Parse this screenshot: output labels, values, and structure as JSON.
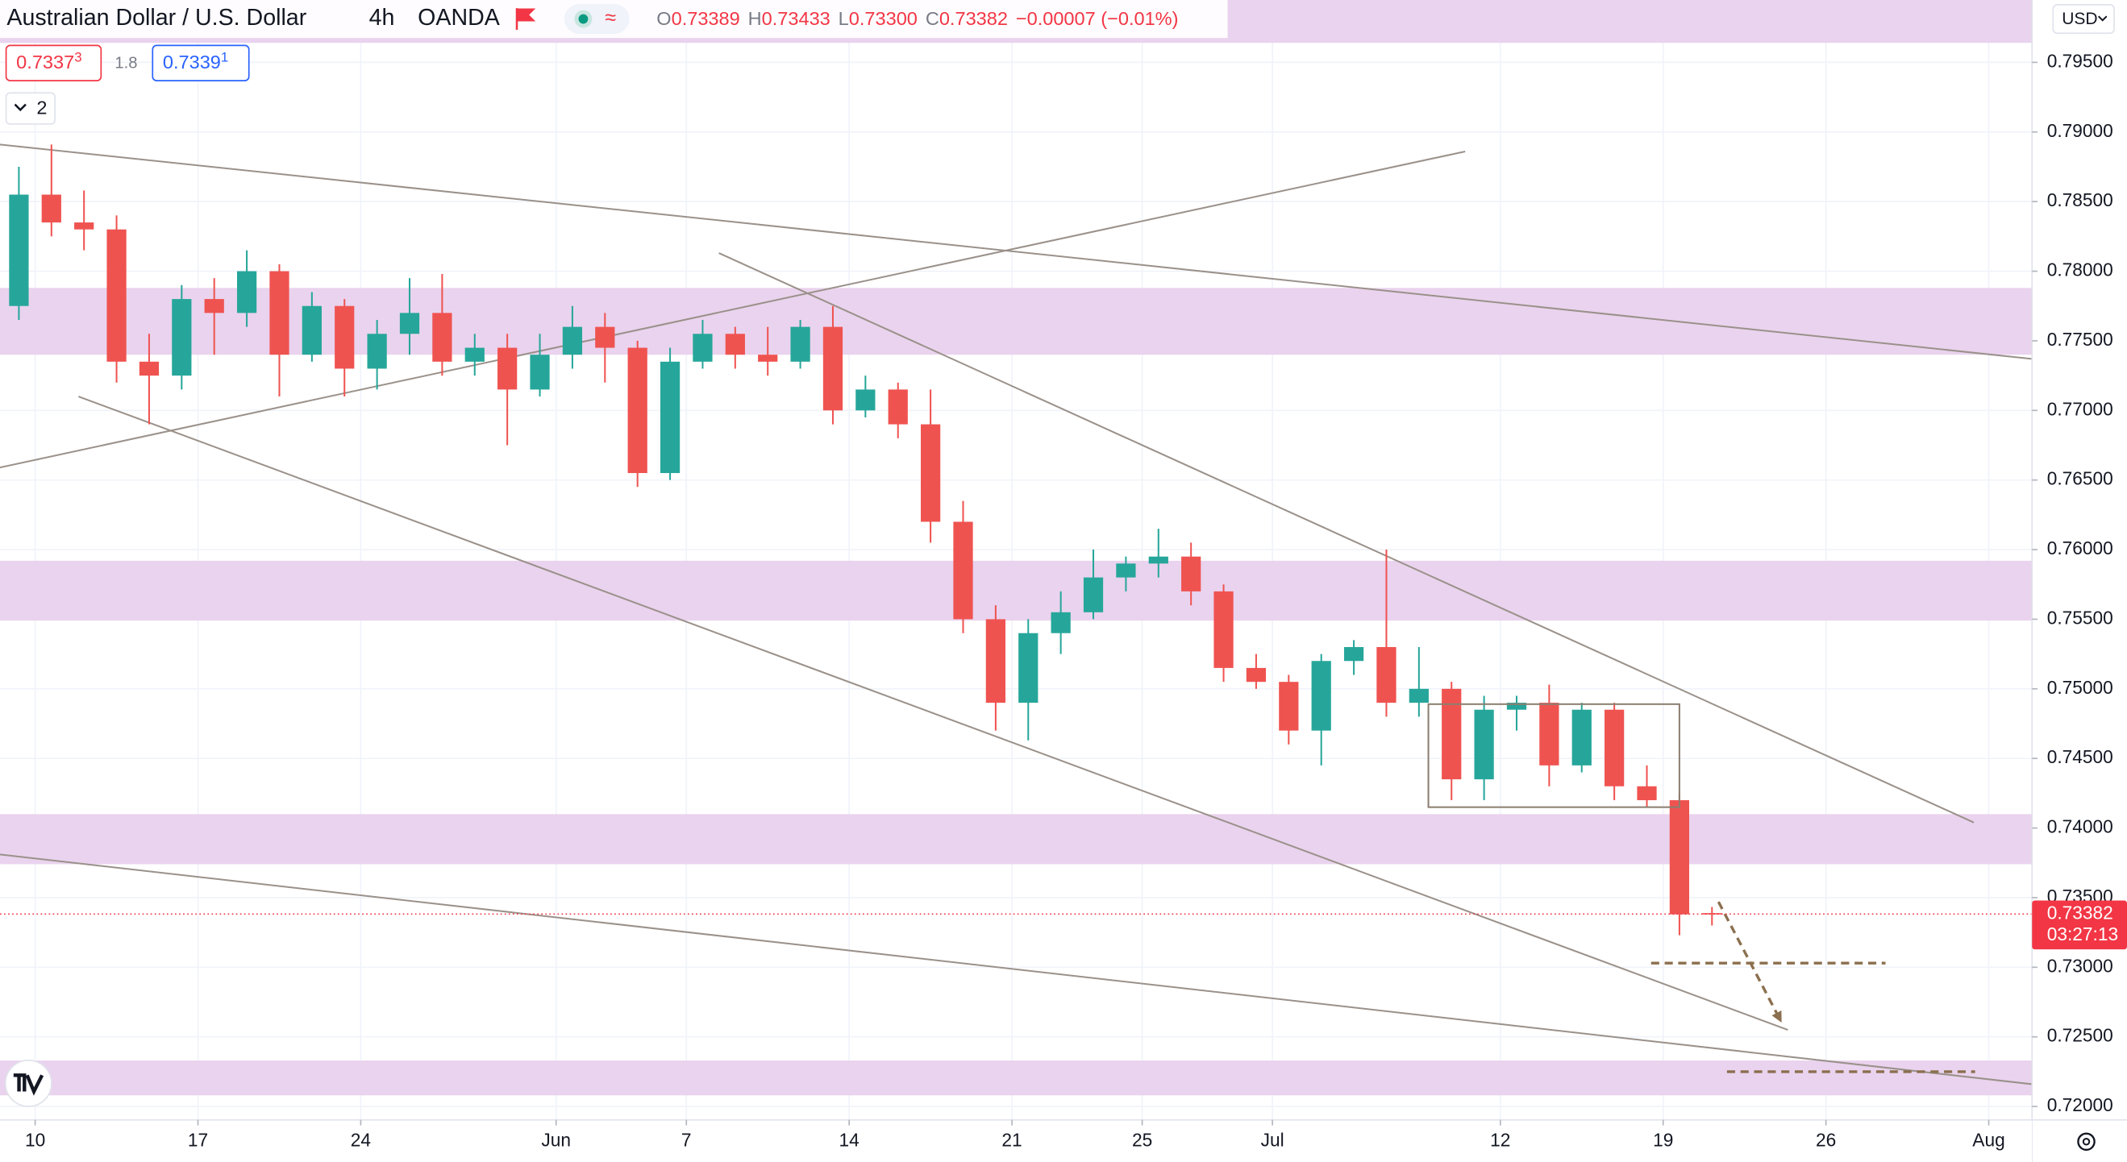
{
  "ui": {
    "symbol": "Australian Dollar / U.S. Dollar",
    "interval": "4h",
    "exchange": "OANDA",
    "ohlc": {
      "o_label": "O",
      "o": "0.73389",
      "h_label": "H",
      "h": "0.73433",
      "l_label": "L",
      "l": "0.73300",
      "c_label": "C",
      "c": "0.73382",
      "change": "−0.00007 (−0.01%)"
    },
    "sell": {
      "main": "0.7337",
      "pip": "3"
    },
    "spread": "1.8",
    "buy": {
      "main": "0.7339",
      "pip": "1"
    },
    "indicators": "2",
    "currency": "USD"
  },
  "chart_data": {
    "type": "candlestick",
    "up_color": "#26a69a",
    "down_color": "#ef5350",
    "x": [
      -0.5,
      0.5,
      1.5,
      2.5,
      3.5,
      4.5,
      5.5,
      6.5,
      7.5,
      8.5,
      9.5,
      10.5,
      11.5,
      12.5,
      13.5,
      14.5,
      15.5,
      16.5,
      17.5,
      18.5,
      19.5,
      20.5,
      21.5,
      22.5,
      23.5,
      24.5,
      25.5,
      26.5,
      27.5,
      28.5,
      29.5,
      30.5,
      31.5,
      32.5,
      33.5,
      34.5,
      35.5,
      36.5,
      37.5,
      38.5,
      39.5,
      40.5,
      41.5,
      42.5,
      43.5,
      44.5,
      45.5,
      46.5,
      47.5,
      48.5,
      49.5,
      50.5,
      51.5
    ],
    "open": [
      0.7775,
      0.7855,
      0.7835,
      0.783,
      0.7735,
      0.7725,
      0.778,
      0.777,
      0.78,
      0.774,
      0.7775,
      0.773,
      0.7755,
      0.777,
      0.7735,
      0.7745,
      0.7715,
      0.774,
      0.776,
      0.7745,
      0.7655,
      0.7735,
      0.7755,
      0.774,
      0.7735,
      0.776,
      0.77,
      0.7715,
      0.769,
      0.762,
      0.755,
      0.749,
      0.754,
      0.7555,
      0.758,
      0.759,
      0.7595,
      0.757,
      0.7515,
      0.7505,
      0.747,
      0.752,
      0.753,
      0.749,
      0.75,
      0.7435,
      0.7485,
      0.749,
      0.7445,
      0.7485,
      0.743,
      0.742,
      0.73389
    ],
    "high": [
      0.7875,
      0.7891,
      0.7858,
      0.784,
      0.7755,
      0.779,
      0.7795,
      0.7815,
      0.7805,
      0.7785,
      0.778,
      0.7765,
      0.7795,
      0.7798,
      0.7755,
      0.7755,
      0.7755,
      0.7775,
      0.777,
      0.775,
      0.7745,
      0.7765,
      0.776,
      0.776,
      0.7765,
      0.7775,
      0.7725,
      0.772,
      0.7715,
      0.7635,
      0.756,
      0.755,
      0.757,
      0.76,
      0.7595,
      0.7615,
      0.7605,
      0.7575,
      0.7525,
      0.751,
      0.7525,
      0.7535,
      0.76,
      0.753,
      0.7505,
      0.7495,
      0.7495,
      0.7503,
      0.749,
      0.749,
      0.7445,
      0.7425,
      0.73433
    ],
    "low": [
      0.7765,
      0.7825,
      0.7815,
      0.772,
      0.769,
      0.7715,
      0.774,
      0.776,
      0.771,
      0.7735,
      0.771,
      0.7715,
      0.774,
      0.7725,
      0.7725,
      0.7675,
      0.771,
      0.773,
      0.772,
      0.7645,
      0.765,
      0.773,
      0.773,
      0.7725,
      0.773,
      0.769,
      0.7695,
      0.768,
      0.7605,
      0.754,
      0.747,
      0.7463,
      0.7525,
      0.755,
      0.757,
      0.758,
      0.756,
      0.7505,
      0.75,
      0.746,
      0.7445,
      0.751,
      0.748,
      0.748,
      0.742,
      0.742,
      0.747,
      0.743,
      0.744,
      0.742,
      0.7415,
      0.7323,
      0.733
    ],
    "close": [
      0.7855,
      0.7835,
      0.783,
      0.7735,
      0.7725,
      0.778,
      0.777,
      0.78,
      0.774,
      0.7775,
      0.773,
      0.7755,
      0.777,
      0.7735,
      0.7745,
      0.7715,
      0.774,
      0.776,
      0.7745,
      0.7655,
      0.7735,
      0.7755,
      0.774,
      0.7735,
      0.776,
      0.77,
      0.7715,
      0.769,
      0.762,
      0.755,
      0.749,
      0.754,
      0.7555,
      0.758,
      0.759,
      0.7595,
      0.757,
      0.7515,
      0.7505,
      0.747,
      0.752,
      0.753,
      0.749,
      0.75,
      0.7435,
      0.7485,
      0.749,
      0.7445,
      0.7485,
      0.743,
      0.742,
      0.7338,
      0.73382
    ],
    "xlim": [
      -1.08,
      61.33
    ],
    "ylim": [
      0.71903,
      0.79948
    ],
    "xticks": [
      {
        "value": 0,
        "label": "10"
      },
      {
        "value": 5,
        "label": "17"
      },
      {
        "value": 10,
        "label": "24"
      },
      {
        "value": 16,
        "label": "Jun"
      },
      {
        "value": 20,
        "label": "7"
      },
      {
        "value": 25,
        "label": "14"
      },
      {
        "value": 30,
        "label": "21"
      },
      {
        "value": 34,
        "label": "25"
      },
      {
        "value": 38,
        "label": "Jul"
      },
      {
        "value": 45,
        "label": "12"
      },
      {
        "value": 50,
        "label": "19"
      },
      {
        "value": 55,
        "label": "26"
      },
      {
        "value": 60,
        "label": "Aug"
      }
    ],
    "yticks": [
      {
        "value": 0.72,
        "label": "0.72000"
      },
      {
        "value": 0.725,
        "label": "0.72500"
      },
      {
        "value": 0.73,
        "label": "0.73000"
      },
      {
        "value": 0.735,
        "label": "0.73500"
      },
      {
        "value": 0.74,
        "label": "0.74000"
      },
      {
        "value": 0.745,
        "label": "0.74500"
      },
      {
        "value": 0.75,
        "label": "0.75000"
      },
      {
        "value": 0.755,
        "label": "0.75500"
      },
      {
        "value": 0.76,
        "label": "0.76000"
      },
      {
        "value": 0.765,
        "label": "0.76500"
      },
      {
        "value": 0.77,
        "label": "0.77000"
      },
      {
        "value": 0.775,
        "label": "0.77500"
      },
      {
        "value": 0.78,
        "label": "0.78000"
      },
      {
        "value": 0.785,
        "label": "0.78500"
      },
      {
        "value": 0.79,
        "label": "0.79000"
      },
      {
        "value": 0.795,
        "label": "0.79500"
      }
    ],
    "grid": true,
    "last_price": 0.73382,
    "last_price_color": "#f23645",
    "countdown": "03:27:13",
    "zones": [
      [
        0.7964,
        0.7999
      ],
      [
        0.774,
        0.7788
      ],
      [
        0.7549,
        0.7592
      ],
      [
        0.7374,
        0.741
      ],
      [
        0.7208,
        0.7233
      ]
    ],
    "zone_color": "#ead3ee",
    "trendlines": [
      {
        "x": [
          -1.08,
          61.33
        ],
        "y": [
          0.7891,
          0.7737
        ]
      },
      {
        "x": [
          -1.08,
          43.92
        ],
        "y": [
          0.7659,
          0.7886
        ]
      },
      {
        "x": [
          1.33,
          53.83
        ],
        "y": [
          0.771,
          0.7255
        ]
      },
      {
        "x": [
          21,
          59.54
        ],
        "y": [
          0.7813,
          0.7404
        ]
      },
      {
        "x": [
          -1.08,
          61.33
        ],
        "y": [
          0.7381,
          0.7216
        ]
      }
    ],
    "trendline_color": "#9a918a",
    "box": {
      "x": [
        42.79,
        50.5
      ],
      "y": [
        0.7415,
        0.7489
      ]
    },
    "box_color": "#8c7e70",
    "levels": [
      {
        "x": [
          49.63,
          56.83
        ],
        "y": 0.7303
      },
      {
        "x": [
          51.96,
          59.58
        ],
        "y": 0.7225
      }
    ],
    "arrow": {
      "x": [
        51.7,
        53.6
      ],
      "y": [
        0.7347,
        0.7262
      ]
    },
    "drawing_color": "#8b6f4e"
  }
}
